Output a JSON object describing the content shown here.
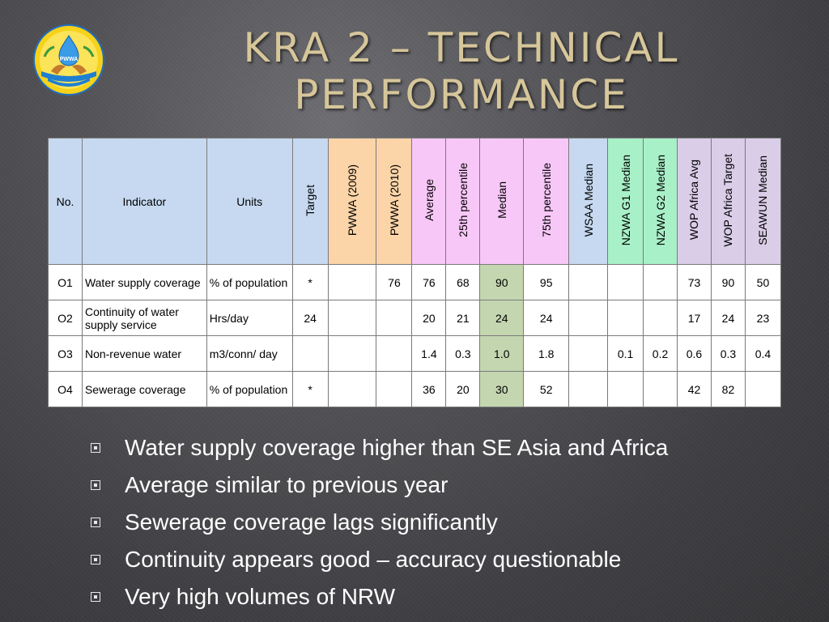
{
  "slide": {
    "title_line1": "KRA 2 – TECHNICAL",
    "title_line2": "PERFORMANCE",
    "logo_text": "PWWA"
  },
  "colors": {
    "title": "#d6c69a",
    "header_blue": "#c6d9f0",
    "header_orange": "#fbd4a8",
    "header_pink": "#f7c7f7",
    "header_green": "#a8f0c8",
    "header_purple": "#d9cde8",
    "median_cell": "#c4d6b0"
  },
  "table": {
    "headers": {
      "no": "No.",
      "indicator": "Indicator",
      "units": "Units",
      "target": "Target",
      "pwwa2009": "PWWA (2009)",
      "pwwa2010": "PWWA (2010)",
      "average": "Average",
      "p25": "25th percentile",
      "median": "Median",
      "p75": "75th percentile",
      "wsaa": "WSAA Median",
      "nzwa_g1": "NZWA G1 Median",
      "nzwa_g2": "NZWA G2 Median",
      "wop_avg": "WOP Africa Avg",
      "wop_target": "WOP Africa Target",
      "seawun": "SEAWUN Median"
    },
    "rows": [
      {
        "no": "O1",
        "indicator": "Water supply coverage",
        "units": "% of population",
        "target": "*",
        "pwwa2009": "",
        "pwwa2010": "76",
        "average": "76",
        "p25": "68",
        "median": "90",
        "p75": "95",
        "wsaa": "",
        "nzwa_g1": "",
        "nzwa_g2": "",
        "wop_avg": "73",
        "wop_target": "90",
        "seawun": "50"
      },
      {
        "no": "O2",
        "indicator": "Continuity of water supply service",
        "units": "Hrs/day",
        "target": "24",
        "pwwa2009": "",
        "pwwa2010": "",
        "average": "20",
        "p25": "21",
        "median": "24",
        "p75": "24",
        "wsaa": "",
        "nzwa_g1": "",
        "nzwa_g2": "",
        "wop_avg": "17",
        "wop_target": "24",
        "seawun": "23"
      },
      {
        "no": "O3",
        "indicator": "Non-revenue water",
        "units": "m3/conn/ day",
        "target": "",
        "pwwa2009": "",
        "pwwa2010": "",
        "average": "1.4",
        "p25": "0.3",
        "median": "1.0",
        "p75": "1.8",
        "wsaa": "",
        "nzwa_g1": "0.1",
        "nzwa_g2": "0.2",
        "wop_avg": "0.6",
        "wop_target": "0.3",
        "seawun": "0.4"
      },
      {
        "no": "O4",
        "indicator": "Sewerage coverage",
        "units": "% of population",
        "target": "*",
        "pwwa2009": "",
        "pwwa2010": "",
        "average": "36",
        "p25": "20",
        "median": "30",
        "p75": "52",
        "wsaa": "",
        "nzwa_g1": "",
        "nzwa_g2": "",
        "wop_avg": "42",
        "wop_target": "82",
        "seawun": ""
      }
    ]
  },
  "bullets": [
    "Water supply coverage higher than SE Asia and Africa",
    "Average similar to previous year",
    "Sewerage coverage lags significantly",
    "Continuity appears good – accuracy questionable",
    "Very high  volumes of NRW"
  ]
}
